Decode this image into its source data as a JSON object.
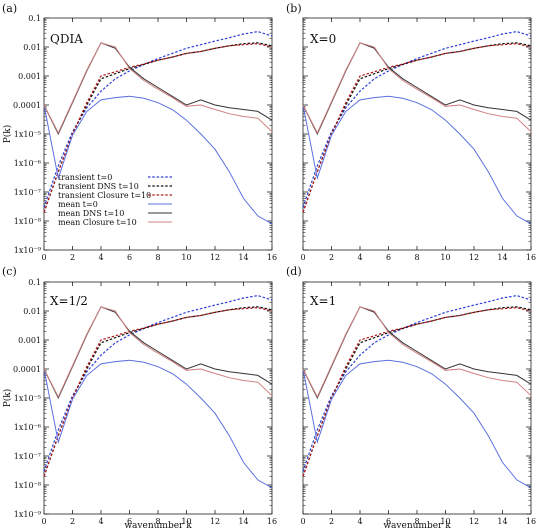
{
  "figure": {
    "xlabel": "wavenumber k",
    "ylabel": "P(k)"
  },
  "style": {
    "colors": {
      "transient t=0": "#2b3fd6",
      "transient DNS t=10": "#111111",
      "transient Closure t=10": "#b01818",
      "mean t=0": "#5c6fe0",
      "mean DNS t=10": "#333333",
      "mean Closure t=10": "#d08080"
    }
  },
  "legend": [
    {
      "label": "transient t=0",
      "dash": "dashed",
      "color_key": "transient t=0"
    },
    {
      "label": "transient DNS t=10",
      "dash": "dashed",
      "color_key": "transient DNS t=10"
    },
    {
      "label": "transient Closure t=10",
      "dash": "dashed",
      "color_key": "transient Closure t=10"
    },
    {
      "label": "mean t=0",
      "dash": "solid",
      "color_key": "mean t=0"
    },
    {
      "label": "mean DNS t=10",
      "dash": "solid",
      "color_key": "mean DNS t=10"
    },
    {
      "label": "mean Closure t=10",
      "dash": "solid",
      "color_key": "mean Closure t=10"
    }
  ],
  "chart_data": [
    {
      "type": "line",
      "panel_label": "(a)",
      "title": "QDIA",
      "xlabel": "",
      "ylabel": "P(k)",
      "log_y": true,
      "xlim": [
        0,
        16
      ],
      "ylim": [
        1e-09,
        0.1
      ],
      "xticks": [
        0,
        2,
        4,
        6,
        8,
        10,
        12,
        14,
        16
      ],
      "yticks": [
        {
          "value": 1e-09,
          "label": "1x10⁻⁹"
        },
        {
          "value": 1e-08,
          "label": "1x10⁻⁸"
        },
        {
          "value": 1e-07,
          "label": "1x10⁻⁷"
        },
        {
          "value": 1e-06,
          "label": "1x10⁻⁶"
        },
        {
          "value": 1e-05,
          "label": "1x10⁻⁵"
        },
        {
          "value": 0.0001,
          "label": "0.0001"
        },
        {
          "value": 0.001,
          "label": "0.001"
        },
        {
          "value": 0.01,
          "label": "0.01"
        },
        {
          "value": 0.1,
          "label": "0.1"
        }
      ],
      "legend_position": "left",
      "x": [
        0,
        1,
        2,
        3,
        4,
        5,
        6,
        7,
        8,
        9,
        10,
        11,
        12,
        13,
        14,
        15,
        16
      ],
      "series": [
        {
          "name": "transient t=0",
          "values": [
            3e-08,
            8e-07,
            1.2e-05,
            8e-05,
            0.0003,
            0.0008,
            0.0015,
            0.0025,
            0.004,
            0.006,
            0.009,
            0.012,
            0.016,
            0.021,
            0.028,
            0.034,
            0.024
          ]
        },
        {
          "name": "transient DNS t=10",
          "values": [
            2e-08,
            5e-07,
            1e-05,
            0.0001,
            0.0008,
            0.0012,
            0.0018,
            0.0025,
            0.0035,
            0.0045,
            0.006,
            0.007,
            0.009,
            0.011,
            0.013,
            0.014,
            0.011
          ]
        },
        {
          "name": "transient Closure t=10",
          "values": [
            2e-08,
            5e-07,
            1e-05,
            0.00012,
            0.001,
            0.0014,
            0.002,
            0.0026,
            0.0035,
            0.0045,
            0.006,
            0.007,
            0.009,
            0.011,
            0.012,
            0.013,
            0.01
          ]
        },
        {
          "name": "mean t=0",
          "values": [
            0.0001,
            3e-07,
            9e-06,
            6e-05,
            0.00015,
            0.00018,
            0.0002,
            0.00017,
            0.00012,
            7e-05,
            3e-05,
            1e-05,
            3e-06,
            5e-07,
            6e-08,
            1.5e-08,
            8e-09
          ]
        },
        {
          "name": "mean DNS t=10",
          "values": [
            0.0001,
            1e-05,
            0.00012,
            0.0015,
            0.014,
            0.009,
            0.002,
            0.0008,
            0.0004,
            0.0002,
            0.0001,
            0.00015,
            0.0001,
            8e-05,
            7e-05,
            6e-05,
            3e-05
          ]
        },
        {
          "name": "mean Closure t=10",
          "values": [
            0.0001,
            1.1e-05,
            0.00013,
            0.0016,
            0.014,
            0.01,
            0.0018,
            0.0007,
            0.00035,
            0.00018,
            9e-05,
            0.0001,
            7e-05,
            5e-05,
            4e-05,
            3.5e-05,
            1.2e-05
          ]
        }
      ]
    },
    {
      "type": "line",
      "panel_label": "(b)",
      "title": "X=0",
      "xlabel": "",
      "ylabel": "",
      "log_y": true,
      "xlim": [
        0,
        16
      ],
      "ylim": [
        1e-09,
        0.1
      ],
      "xticks": [
        0,
        2,
        4,
        6,
        8,
        10,
        12,
        14,
        16
      ],
      "yticks": [],
      "x": [
        0,
        1,
        2,
        3,
        4,
        5,
        6,
        7,
        8,
        9,
        10,
        11,
        12,
        13,
        14,
        15,
        16
      ],
      "series": [
        {
          "name": "transient t=0",
          "values": [
            3e-08,
            8e-07,
            1.2e-05,
            8e-05,
            0.0003,
            0.0008,
            0.0015,
            0.0025,
            0.004,
            0.006,
            0.009,
            0.012,
            0.016,
            0.021,
            0.028,
            0.034,
            0.024
          ]
        },
        {
          "name": "transient DNS t=10",
          "values": [
            2e-08,
            5e-07,
            1e-05,
            0.0001,
            0.0008,
            0.0012,
            0.0018,
            0.0025,
            0.0035,
            0.0045,
            0.006,
            0.007,
            0.009,
            0.011,
            0.013,
            0.014,
            0.011
          ]
        },
        {
          "name": "transient Closure t=10",
          "values": [
            2e-08,
            5e-07,
            1e-05,
            0.00012,
            0.001,
            0.0014,
            0.002,
            0.0026,
            0.0035,
            0.0045,
            0.006,
            0.007,
            0.009,
            0.011,
            0.012,
            0.013,
            0.01
          ]
        },
        {
          "name": "mean t=0",
          "values": [
            0.0001,
            3e-07,
            9e-06,
            6e-05,
            0.00015,
            0.00018,
            0.0002,
            0.00017,
            0.00012,
            7e-05,
            3e-05,
            1e-05,
            3e-06,
            5e-07,
            6e-08,
            1.5e-08,
            8e-09
          ]
        },
        {
          "name": "mean DNS t=10",
          "values": [
            0.0001,
            1e-05,
            0.00012,
            0.0015,
            0.014,
            0.009,
            0.002,
            0.0008,
            0.0004,
            0.0002,
            0.0001,
            0.00015,
            0.0001,
            8e-05,
            7e-05,
            6e-05,
            3e-05
          ]
        },
        {
          "name": "mean Closure t=10",
          "values": [
            0.0001,
            1.1e-05,
            0.00013,
            0.0016,
            0.014,
            0.01,
            0.0018,
            0.0007,
            0.00035,
            0.00018,
            9e-05,
            0.0001,
            7e-05,
            5e-05,
            4e-05,
            3.5e-05,
            1.2e-05
          ]
        }
      ]
    },
    {
      "type": "line",
      "panel_label": "(c)",
      "title": "X=1/2",
      "xlabel": "wavenumber k",
      "ylabel": "P(k)",
      "log_y": true,
      "xlim": [
        0,
        16
      ],
      "ylim": [
        1e-09,
        0.1
      ],
      "xticks": [
        0,
        2,
        4,
        6,
        8,
        10,
        12,
        14,
        16
      ],
      "yticks": [
        {
          "value": 1e-09,
          "label": "1x10⁻⁹"
        },
        {
          "value": 1e-08,
          "label": "1x10⁻⁸"
        },
        {
          "value": 1e-07,
          "label": "1x10⁻⁷"
        },
        {
          "value": 1e-06,
          "label": "1x10⁻⁶"
        },
        {
          "value": 1e-05,
          "label": "1x10⁻⁵"
        },
        {
          "value": 0.0001,
          "label": "0.0001"
        },
        {
          "value": 0.001,
          "label": "0.001"
        },
        {
          "value": 0.01,
          "label": "0.01"
        },
        {
          "value": 0.1,
          "label": "0.1"
        }
      ],
      "x": [
        0,
        1,
        2,
        3,
        4,
        5,
        6,
        7,
        8,
        9,
        10,
        11,
        12,
        13,
        14,
        15,
        16
      ],
      "series": [
        {
          "name": "transient t=0",
          "values": [
            3e-08,
            8e-07,
            1.2e-05,
            8e-05,
            0.0003,
            0.0008,
            0.0015,
            0.0025,
            0.004,
            0.006,
            0.009,
            0.012,
            0.016,
            0.021,
            0.028,
            0.034,
            0.024
          ]
        },
        {
          "name": "transient DNS t=10",
          "values": [
            2e-08,
            5e-07,
            1e-05,
            0.0001,
            0.0008,
            0.0012,
            0.0018,
            0.0025,
            0.0035,
            0.0045,
            0.006,
            0.007,
            0.009,
            0.011,
            0.013,
            0.014,
            0.011
          ]
        },
        {
          "name": "transient Closure t=10",
          "values": [
            2e-08,
            5e-07,
            1e-05,
            0.00012,
            0.001,
            0.0014,
            0.002,
            0.0026,
            0.0035,
            0.0045,
            0.006,
            0.007,
            0.009,
            0.011,
            0.012,
            0.013,
            0.01
          ]
        },
        {
          "name": "mean t=0",
          "values": [
            0.0001,
            3e-07,
            9e-06,
            6e-05,
            0.00015,
            0.00018,
            0.0002,
            0.00017,
            0.00012,
            7e-05,
            3e-05,
            1e-05,
            3e-06,
            5e-07,
            6e-08,
            1.5e-08,
            8e-09
          ]
        },
        {
          "name": "mean DNS t=10",
          "values": [
            0.0001,
            1e-05,
            0.00012,
            0.0015,
            0.014,
            0.009,
            0.002,
            0.0008,
            0.0004,
            0.0002,
            0.0001,
            0.00015,
            0.0001,
            8e-05,
            7e-05,
            6e-05,
            3e-05
          ]
        },
        {
          "name": "mean Closure t=10",
          "values": [
            0.0001,
            1.1e-05,
            0.00013,
            0.0016,
            0.014,
            0.01,
            0.0018,
            0.0007,
            0.00035,
            0.00018,
            9e-05,
            0.0001,
            7e-05,
            5e-05,
            4e-05,
            3.5e-05,
            1.2e-05
          ]
        }
      ]
    },
    {
      "type": "line",
      "panel_label": "(d)",
      "title": "X=1",
      "xlabel": "wavenumber k",
      "ylabel": "",
      "log_y": true,
      "xlim": [
        0,
        16
      ],
      "ylim": [
        1e-09,
        0.1
      ],
      "xticks": [
        0,
        2,
        4,
        6,
        8,
        10,
        12,
        14,
        16
      ],
      "yticks": [],
      "x": [
        0,
        1,
        2,
        3,
        4,
        5,
        6,
        7,
        8,
        9,
        10,
        11,
        12,
        13,
        14,
        15,
        16
      ],
      "series": [
        {
          "name": "transient t=0",
          "values": [
            3e-08,
            8e-07,
            1.2e-05,
            8e-05,
            0.0003,
            0.0008,
            0.0015,
            0.0025,
            0.004,
            0.006,
            0.009,
            0.012,
            0.016,
            0.021,
            0.028,
            0.034,
            0.024
          ]
        },
        {
          "name": "transient DNS t=10",
          "values": [
            2e-08,
            5e-07,
            1e-05,
            0.0001,
            0.0008,
            0.0012,
            0.0018,
            0.0025,
            0.0035,
            0.0045,
            0.006,
            0.007,
            0.009,
            0.011,
            0.013,
            0.014,
            0.011
          ]
        },
        {
          "name": "transient Closure t=10",
          "values": [
            2e-08,
            5e-07,
            1e-05,
            0.00012,
            0.001,
            0.0014,
            0.002,
            0.0026,
            0.0035,
            0.0045,
            0.006,
            0.007,
            0.009,
            0.011,
            0.012,
            0.013,
            0.01
          ]
        },
        {
          "name": "mean t=0",
          "values": [
            0.0001,
            3e-07,
            9e-06,
            6e-05,
            0.00015,
            0.00018,
            0.0002,
            0.00017,
            0.00012,
            7e-05,
            3e-05,
            1e-05,
            3e-06,
            5e-07,
            6e-08,
            1.5e-08,
            8e-09
          ]
        },
        {
          "name": "mean DNS t=10",
          "values": [
            0.0001,
            1e-05,
            0.00012,
            0.0015,
            0.014,
            0.009,
            0.002,
            0.0008,
            0.0004,
            0.0002,
            0.0001,
            0.00015,
            0.0001,
            8e-05,
            7e-05,
            6e-05,
            3e-05
          ]
        },
        {
          "name": "mean Closure t=10",
          "values": [
            0.0001,
            1.1e-05,
            0.00013,
            0.0016,
            0.014,
            0.01,
            0.0018,
            0.0007,
            0.00035,
            0.00018,
            9e-05,
            0.0001,
            7e-05,
            5e-05,
            4e-05,
            3.5e-05,
            1.2e-05
          ]
        }
      ]
    }
  ]
}
